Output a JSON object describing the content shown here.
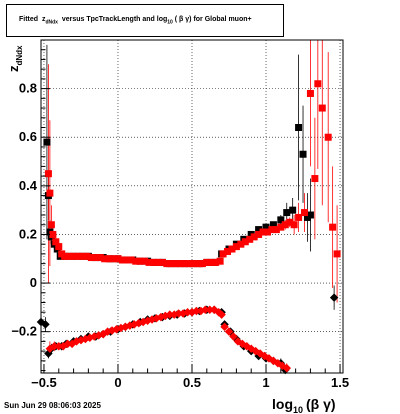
{
  "header": {
    "title_prefix": "Fitted",
    "title_z": "z",
    "title_z_sub": "dNdx",
    "title_mid": "versus TpcTrackLength and log",
    "title_log_sub": "10",
    "title_suffix": "( β γ) for Global muon+"
  },
  "footer": {
    "timestamp": "Sun Jun 29 08:06:03 2025"
  },
  "chart_data": {
    "type": "scatter",
    "title": "Fitted z_dNdx versus TpcTrackLength and log10 ( β γ) for Global muon+",
    "ylabel_main": "z",
    "ylabel_sub": "dNdx",
    "xlabel_main": "log",
    "xlabel_sub": "10",
    "xlabel_suffix": "(β γ)",
    "xlim": [
      -0.52,
      1.52
    ],
    "ylim": [
      -0.37,
      1.0
    ],
    "xticks": [
      -0.5,
      0,
      0.5,
      1,
      1.5
    ],
    "xtick_labels": [
      "−0.5",
      "0",
      "0.5",
      "1",
      "1.5"
    ],
    "yticks": [
      -0.2,
      0,
      0.2,
      0.4,
      0.6,
      0.8
    ],
    "ytick_labels": [
      "−0.2",
      "0",
      "0.2",
      "0.4",
      "0.6",
      "0.8"
    ],
    "grid": true,
    "series": [
      {
        "color": "#000000",
        "points": [
          [
            -0.48,
            0.58,
            0.4
          ],
          [
            -0.47,
            0.36,
            0.1
          ],
          [
            -0.46,
            0.21,
            0.05
          ],
          [
            -0.45,
            0.19,
            0.03
          ],
          [
            -0.43,
            0.16,
            0.02
          ],
          [
            -0.41,
            0.14,
            0.02
          ],
          [
            -0.39,
            0.11,
            0.01
          ],
          [
            -0.35,
            0.11,
            0
          ],
          [
            -0.3,
            0.11,
            0
          ],
          [
            -0.25,
            0.11,
            0
          ],
          [
            -0.2,
            0.11,
            0
          ],
          [
            -0.15,
            0.105,
            0
          ],
          [
            -0.1,
            0.105,
            0
          ],
          [
            -0.05,
            0.1,
            0
          ],
          [
            0,
            0.1,
            0
          ],
          [
            0.05,
            0.095,
            0
          ],
          [
            0.1,
            0.095,
            0
          ],
          [
            0.15,
            0.09,
            0
          ],
          [
            0.2,
            0.09,
            0
          ],
          [
            0.25,
            0.085,
            0
          ],
          [
            0.3,
            0.085,
            0
          ],
          [
            0.35,
            0.08,
            0
          ],
          [
            0.4,
            0.08,
            0
          ],
          [
            0.45,
            0.08,
            0
          ],
          [
            0.5,
            0.08,
            0
          ],
          [
            0.55,
            0.08,
            0
          ],
          [
            0.6,
            0.085,
            0
          ],
          [
            0.65,
            0.085,
            0
          ],
          [
            0.7,
            0.12,
            0
          ],
          [
            0.75,
            0.14,
            0
          ],
          [
            0.8,
            0.16,
            0
          ],
          [
            0.85,
            0.18,
            0
          ],
          [
            0.9,
            0.2,
            0
          ],
          [
            0.95,
            0.22,
            0
          ],
          [
            1.0,
            0.23,
            0.01
          ],
          [
            1.05,
            0.24,
            0.01
          ],
          [
            1.1,
            0.26,
            0.02
          ],
          [
            1.14,
            0.29,
            0.04
          ],
          [
            1.18,
            0.3,
            0.05
          ],
          [
            1.22,
            0.64,
            0.3
          ],
          [
            1.25,
            0.53,
            0.2
          ],
          [
            1.28,
            0.27,
            0.1
          ],
          [
            1.3,
            0.28,
            0.15
          ],
          [
            -0.52,
            -0.16,
            0.03
          ],
          [
            -0.49,
            -0.17,
            0.03
          ],
          [
            -0.47,
            -0.29,
            0.02
          ],
          [
            -0.45,
            -0.27,
            0.02
          ],
          [
            -0.42,
            -0.26,
            0.01
          ],
          [
            -0.38,
            -0.26,
            0.01
          ],
          [
            -0.35,
            -0.25,
            0
          ],
          [
            -0.3,
            -0.24,
            0
          ],
          [
            -0.25,
            -0.23,
            0
          ],
          [
            -0.2,
            -0.22,
            0
          ],
          [
            -0.15,
            -0.22,
            0
          ],
          [
            -0.1,
            -0.21,
            0
          ],
          [
            -0.05,
            -0.2,
            0
          ],
          [
            0,
            -0.19,
            0
          ],
          [
            0.05,
            -0.18,
            0
          ],
          [
            0.1,
            -0.17,
            0
          ],
          [
            0.15,
            -0.16,
            0
          ],
          [
            0.2,
            -0.15,
            0
          ],
          [
            0.25,
            -0.145,
            0
          ],
          [
            0.3,
            -0.14,
            0
          ],
          [
            0.35,
            -0.135,
            0
          ],
          [
            0.4,
            -0.13,
            0
          ],
          [
            0.45,
            -0.125,
            0
          ],
          [
            0.5,
            -0.12,
            0
          ],
          [
            0.55,
            -0.115,
            0
          ],
          [
            0.6,
            -0.11,
            0
          ],
          [
            0.65,
            -0.11,
            0
          ],
          [
            0.7,
            -0.12,
            0
          ],
          [
            0.72,
            -0.17,
            0
          ],
          [
            0.76,
            -0.2,
            0
          ],
          [
            0.8,
            -0.23,
            0
          ],
          [
            0.85,
            -0.26,
            0
          ],
          [
            0.9,
            -0.28,
            0
          ],
          [
            0.95,
            -0.3,
            0.01
          ],
          [
            1.0,
            -0.31,
            0.01
          ],
          [
            1.05,
            -0.32,
            0.01
          ],
          [
            1.1,
            -0.33,
            0.02
          ],
          [
            1.13,
            -0.37,
            0.03
          ],
          [
            1.46,
            -0.06,
            0.05
          ]
        ]
      },
      {
        "color": "#ff0000",
        "points": [
          [
            -0.47,
            0.45,
            0.45
          ],
          [
            -0.46,
            0.37,
            0.3
          ],
          [
            -0.45,
            0.24,
            0.08
          ],
          [
            -0.44,
            0.2,
            0.05
          ],
          [
            -0.42,
            0.17,
            0.03
          ],
          [
            -0.4,
            0.15,
            0.02
          ],
          [
            -0.38,
            0.12,
            0.01
          ],
          [
            -0.36,
            0.11,
            0
          ],
          [
            -0.33,
            0.11,
            0
          ],
          [
            -0.3,
            0.11,
            0
          ],
          [
            -0.27,
            0.11,
            0
          ],
          [
            -0.24,
            0.11,
            0
          ],
          [
            -0.21,
            0.11,
            0
          ],
          [
            -0.18,
            0.105,
            0
          ],
          [
            -0.15,
            0.105,
            0
          ],
          [
            -0.12,
            0.105,
            0
          ],
          [
            -0.09,
            0.1,
            0
          ],
          [
            -0.06,
            0.1,
            0
          ],
          [
            -0.03,
            0.1,
            0
          ],
          [
            0,
            0.1,
            0
          ],
          [
            0.03,
            0.095,
            0
          ],
          [
            0.06,
            0.095,
            0
          ],
          [
            0.09,
            0.095,
            0
          ],
          [
            0.12,
            0.09,
            0
          ],
          [
            0.15,
            0.09,
            0
          ],
          [
            0.18,
            0.09,
            0
          ],
          [
            0.21,
            0.085,
            0
          ],
          [
            0.24,
            0.085,
            0
          ],
          [
            0.27,
            0.085,
            0
          ],
          [
            0.3,
            0.085,
            0
          ],
          [
            0.33,
            0.08,
            0
          ],
          [
            0.36,
            0.08,
            0
          ],
          [
            0.39,
            0.08,
            0
          ],
          [
            0.42,
            0.08,
            0
          ],
          [
            0.45,
            0.08,
            0
          ],
          [
            0.48,
            0.08,
            0
          ],
          [
            0.51,
            0.08,
            0
          ],
          [
            0.54,
            0.08,
            0
          ],
          [
            0.57,
            0.08,
            0
          ],
          [
            0.6,
            0.085,
            0
          ],
          [
            0.63,
            0.085,
            0
          ],
          [
            0.66,
            0.085,
            0
          ],
          [
            0.69,
            0.09,
            0
          ],
          [
            0.71,
            0.12,
            0
          ],
          [
            0.74,
            0.13,
            0
          ],
          [
            0.77,
            0.14,
            0
          ],
          [
            0.8,
            0.15,
            0
          ],
          [
            0.83,
            0.16,
            0
          ],
          [
            0.86,
            0.17,
            0
          ],
          [
            0.89,
            0.18,
            0
          ],
          [
            0.92,
            0.19,
            0
          ],
          [
            0.95,
            0.2,
            0
          ],
          [
            0.98,
            0.21,
            0
          ],
          [
            1.01,
            0.21,
            0.01
          ],
          [
            1.04,
            0.22,
            0.01
          ],
          [
            1.07,
            0.22,
            0.01
          ],
          [
            1.1,
            0.23,
            0.01
          ],
          [
            1.13,
            0.24,
            0.02
          ],
          [
            1.16,
            0.25,
            0.02
          ],
          [
            1.19,
            0.24,
            0.04
          ],
          [
            1.22,
            0.27,
            0.06
          ],
          [
            1.26,
            0.29,
            0.08
          ],
          [
            1.3,
            0.78,
            0.3
          ],
          [
            1.33,
            0.43,
            0.25
          ],
          [
            1.35,
            0.82,
            0.35
          ],
          [
            1.38,
            0.72,
            0.4
          ],
          [
            1.42,
            0.6,
            0.35
          ],
          [
            1.45,
            0.23,
            0.25
          ],
          [
            1.48,
            0.12,
            0.2
          ],
          [
            -0.46,
            -0.27,
            0.03
          ],
          [
            -0.43,
            -0.26,
            0.02
          ],
          [
            -0.4,
            -0.26,
            0.01
          ],
          [
            -0.37,
            -0.26,
            0.01
          ],
          [
            -0.34,
            -0.25,
            0
          ],
          [
            -0.31,
            -0.25,
            0
          ],
          [
            -0.28,
            -0.24,
            0
          ],
          [
            -0.25,
            -0.235,
            0
          ],
          [
            -0.22,
            -0.23,
            0
          ],
          [
            -0.19,
            -0.225,
            0
          ],
          [
            -0.16,
            -0.22,
            0
          ],
          [
            -0.13,
            -0.215,
            0
          ],
          [
            -0.1,
            -0.21,
            0
          ],
          [
            -0.07,
            -0.2,
            0
          ],
          [
            -0.04,
            -0.195,
            0
          ],
          [
            -0.01,
            -0.19,
            0
          ],
          [
            0.02,
            -0.185,
            0
          ],
          [
            0.05,
            -0.18,
            0
          ],
          [
            0.08,
            -0.175,
            0
          ],
          [
            0.11,
            -0.17,
            0
          ],
          [
            0.14,
            -0.165,
            0
          ],
          [
            0.17,
            -0.16,
            0
          ],
          [
            0.2,
            -0.155,
            0
          ],
          [
            0.23,
            -0.15,
            0
          ],
          [
            0.26,
            -0.145,
            0
          ],
          [
            0.29,
            -0.14,
            0
          ],
          [
            0.32,
            -0.135,
            0
          ],
          [
            0.35,
            -0.13,
            0
          ],
          [
            0.38,
            -0.13,
            0
          ],
          [
            0.41,
            -0.125,
            0
          ],
          [
            0.44,
            -0.125,
            0
          ],
          [
            0.47,
            -0.12,
            0
          ],
          [
            0.5,
            -0.12,
            0
          ],
          [
            0.53,
            -0.115,
            0
          ],
          [
            0.56,
            -0.115,
            0
          ],
          [
            0.59,
            -0.11,
            0
          ],
          [
            0.62,
            -0.11,
            0
          ],
          [
            0.65,
            -0.11,
            0
          ],
          [
            0.68,
            -0.12,
            0
          ],
          [
            0.7,
            -0.13,
            0
          ],
          [
            0.72,
            -0.18,
            0
          ],
          [
            0.75,
            -0.2,
            0
          ],
          [
            0.78,
            -0.22,
            0
          ],
          [
            0.81,
            -0.24,
            0
          ],
          [
            0.84,
            -0.25,
            0
          ],
          [
            0.87,
            -0.26,
            0
          ],
          [
            0.9,
            -0.27,
            0
          ],
          [
            0.93,
            -0.28,
            0
          ],
          [
            0.96,
            -0.29,
            0
          ],
          [
            0.99,
            -0.3,
            0
          ],
          [
            1.02,
            -0.31,
            0.01
          ],
          [
            1.05,
            -0.32,
            0.01
          ],
          [
            1.08,
            -0.33,
            0.01
          ],
          [
            1.11,
            -0.34,
            0.02
          ],
          [
            1.14,
            -0.35,
            0.02
          ]
        ]
      }
    ]
  }
}
